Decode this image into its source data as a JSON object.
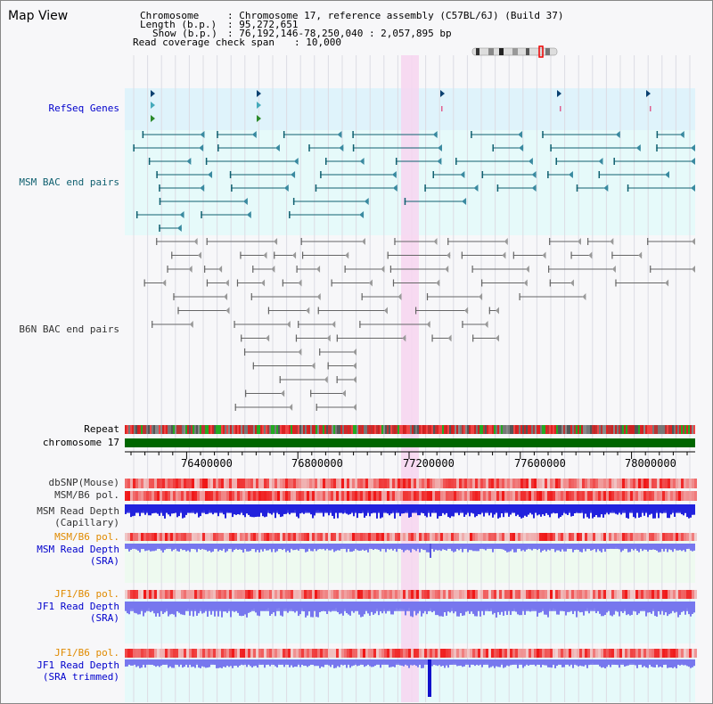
{
  "title": "Map View",
  "header": {
    "chromosome_label": "Chromosome",
    "chromosome_value": ": Chromosome 17, reference assembly (C57BL/6J) (Build 37)",
    "length_label": "Length (b.p.)",
    "length_value": ": 95,272,651",
    "show_label": "Show (b.p.)",
    "show_value": ": 76,192,146-78,250,040 : 2,057,895 bp",
    "coverage_label": "Read coverage check span",
    "coverage_value": ": 10,000"
  },
  "tracks": {
    "refseq": "RefSeq Genes",
    "msm_bac": "MSM BAC end pairs",
    "b6n_bac": "B6N BAC end pairs",
    "repeat": "Repeat",
    "chromosome": "chromosome 17",
    "dbsnp": "dbSNP(Mouse)",
    "msm_b6_pol_1": "MSM/B6 pol.",
    "msm_read_depth_cap_1": "MSM Read Depth",
    "msm_read_depth_cap_2": "(Capillary)",
    "msm_b6_pol_2": "MSM/B6 pol.",
    "msm_read_depth_sra_1": "MSM Read Depth",
    "msm_read_depth_sra_2": "(SRA)",
    "jf1_b6_pol_1": "JF1/B6 pol.",
    "jf1_read_depth_sra_1": "JF1 Read Depth",
    "jf1_read_depth_sra_2": "(SRA)",
    "jf1_b6_pol_2": "JF1/B6 pol.",
    "jf1_read_depth_trim_1": "JF1 Read Depth",
    "jf1_read_depth_trim_2": "(SRA trimmed)"
  },
  "ruler": [
    "76400000",
    "76800000",
    "77200000",
    "77600000",
    "78000000"
  ],
  "colors": {
    "refseq_band": "#dff3fb",
    "msm_band": "#e6fafa",
    "b6n_band": "#f7f7f9",
    "highlight": "#f7d5f0",
    "chromosome_bar": "#006600",
    "msm_pair": "#106070",
    "b6n_pair": "#666666",
    "depth_blue": "#2222dd",
    "depth_light": "#7777ee",
    "pol_red": "#ee2222"
  }
}
